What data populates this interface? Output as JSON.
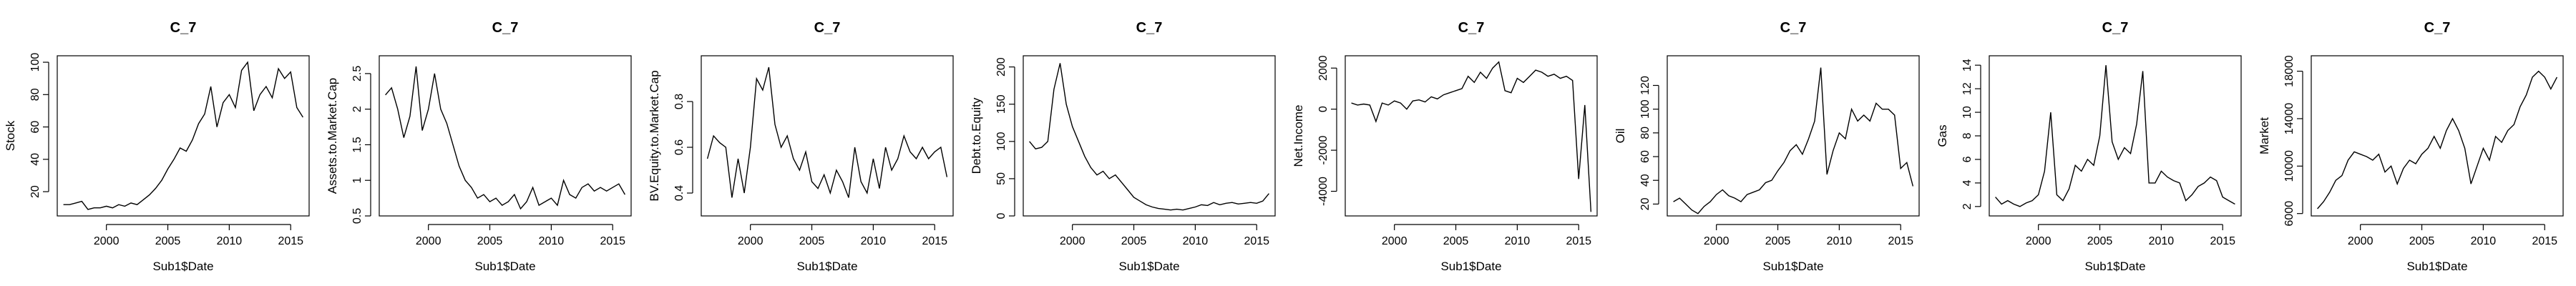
{
  "chart_data": [
    {
      "type": "line",
      "title": "C_7",
      "xlabel": "Sub1$Date",
      "ylabel": "Stock",
      "xlim": [
        1996,
        2016.5
      ],
      "ylim": [
        5,
        104
      ],
      "xticks": [
        2000,
        2005,
        2010,
        2015
      ],
      "yticks": [
        20,
        40,
        60,
        80,
        100
      ],
      "x": [
        1996.5,
        1997.0,
        1997.5,
        1998.0,
        1998.5,
        1999.0,
        1999.5,
        2000.0,
        2000.5,
        2001.0,
        2001.5,
        2002.0,
        2002.5,
        2003.0,
        2003.5,
        2004.0,
        2004.5,
        2005.0,
        2005.5,
        2006.0,
        2006.5,
        2007.0,
        2007.5,
        2008.0,
        2008.5,
        2009.0,
        2009.5,
        2010.0,
        2010.5,
        2011.0,
        2011.5,
        2012.0,
        2012.5,
        2013.0,
        2013.5,
        2014.0,
        2014.5,
        2015.0,
        2015.5,
        2016.0
      ],
      "y": [
        12,
        12,
        13,
        14,
        9,
        10,
        10,
        11,
        10,
        12,
        11,
        13,
        12,
        15,
        18,
        22,
        27,
        34,
        40,
        47,
        45,
        52,
        62,
        68,
        85,
        60,
        75,
        80,
        72,
        95,
        100,
        70,
        80,
        85,
        78,
        96,
        90,
        94,
        72,
        66
      ]
    },
    {
      "type": "line",
      "title": "C_7",
      "xlabel": "Sub1$Date",
      "ylabel": "Assets.to.Market.Cap",
      "xlim": [
        1996,
        2016.5
      ],
      "ylim": [
        0.5,
        2.75
      ],
      "xticks": [
        2000,
        2005,
        2010,
        2015
      ],
      "yticks": [
        0.5,
        1.0,
        1.5,
        2.0,
        2.5
      ],
      "x": [
        1996.5,
        1997.0,
        1997.5,
        1998.0,
        1998.5,
        1999.0,
        1999.5,
        2000.0,
        2000.5,
        2001.0,
        2001.5,
        2002.0,
        2002.5,
        2003.0,
        2003.5,
        2004.0,
        2004.5,
        2005.0,
        2005.5,
        2006.0,
        2006.5,
        2007.0,
        2007.5,
        2008.0,
        2008.5,
        2009.0,
        2009.5,
        2010.0,
        2010.5,
        2011.0,
        2011.5,
        2012.0,
        2012.5,
        2013.0,
        2013.5,
        2014.0,
        2014.5,
        2015.0,
        2015.5,
        2016.0
      ],
      "y": [
        2.2,
        2.3,
        2.0,
        1.6,
        1.9,
        2.6,
        1.7,
        2.0,
        2.5,
        2.0,
        1.8,
        1.5,
        1.2,
        1.0,
        0.9,
        0.75,
        0.8,
        0.7,
        0.75,
        0.65,
        0.7,
        0.8,
        0.6,
        0.7,
        0.9,
        0.65,
        0.7,
        0.75,
        0.65,
        1.0,
        0.8,
        0.75,
        0.9,
        0.95,
        0.85,
        0.9,
        0.85,
        0.9,
        0.95,
        0.8
      ]
    },
    {
      "type": "line",
      "title": "C_7",
      "xlabel": "Sub1$Date",
      "ylabel": "BV.Equity.to.Market.Cap",
      "xlim": [
        1996,
        2016.5
      ],
      "ylim": [
        0.3,
        1.0
      ],
      "xticks": [
        2000,
        2005,
        2010,
        2015
      ],
      "yticks": [
        0.4,
        0.6,
        0.8
      ],
      "x": [
        1996.5,
        1997.0,
        1997.5,
        1998.0,
        1998.5,
        1999.0,
        1999.5,
        2000.0,
        2000.5,
        2001.0,
        2001.5,
        2002.0,
        2002.5,
        2003.0,
        2003.5,
        2004.0,
        2004.5,
        2005.0,
        2005.5,
        2006.0,
        2006.5,
        2007.0,
        2007.5,
        2008.0,
        2008.5,
        2009.0,
        2009.5,
        2010.0,
        2010.5,
        2011.0,
        2011.5,
        2012.0,
        2012.5,
        2013.0,
        2013.5,
        2014.0,
        2014.5,
        2015.0,
        2015.5,
        2016.0
      ],
      "y": [
        0.55,
        0.65,
        0.62,
        0.6,
        0.38,
        0.55,
        0.4,
        0.6,
        0.9,
        0.85,
        0.95,
        0.7,
        0.6,
        0.65,
        0.55,
        0.5,
        0.58,
        0.45,
        0.42,
        0.48,
        0.4,
        0.5,
        0.45,
        0.38,
        0.6,
        0.45,
        0.4,
        0.55,
        0.42,
        0.6,
        0.5,
        0.55,
        0.65,
        0.58,
        0.55,
        0.6,
        0.55,
        0.58,
        0.6,
        0.47
      ]
    },
    {
      "type": "line",
      "title": "C_7",
      "xlabel": "Sub1$Date",
      "ylabel": "Debt.to.Equity",
      "xlim": [
        1996,
        2016.5
      ],
      "ylim": [
        0,
        215
      ],
      "xticks": [
        2000,
        2005,
        2010,
        2015
      ],
      "yticks": [
        0,
        50,
        100,
        150,
        200
      ],
      "x": [
        1996.5,
        1997.0,
        1997.5,
        1998.0,
        1998.5,
        1999.0,
        1999.5,
        2000.0,
        2000.5,
        2001.0,
        2001.5,
        2002.0,
        2002.5,
        2003.0,
        2003.5,
        2004.0,
        2004.5,
        2005.0,
        2005.5,
        2006.0,
        2006.5,
        2007.0,
        2007.5,
        2008.0,
        2008.5,
        2009.0,
        2009.5,
        2010.0,
        2010.5,
        2011.0,
        2011.5,
        2012.0,
        2012.5,
        2013.0,
        2013.5,
        2014.0,
        2014.5,
        2015.0,
        2015.5,
        2016.0
      ],
      "y": [
        100,
        90,
        92,
        100,
        170,
        205,
        150,
        120,
        100,
        80,
        65,
        55,
        60,
        50,
        55,
        45,
        35,
        25,
        20,
        15,
        12,
        10,
        9,
        8,
        9,
        8,
        10,
        12,
        15,
        14,
        18,
        15,
        17,
        18,
        16,
        17,
        18,
        17,
        20,
        30
      ]
    },
    {
      "type": "line",
      "title": "C_7",
      "xlabel": "Sub1$Date",
      "ylabel": "Net.Income",
      "xlim": [
        1996,
        2016.5
      ],
      "ylim": [
        -5200,
        2600
      ],
      "xticks": [
        2000,
        2005,
        2010,
        2015
      ],
      "yticks": [
        -4000,
        -2000,
        0,
        2000
      ],
      "x": [
        1996.5,
        1997.0,
        1997.5,
        1998.0,
        1998.5,
        1999.0,
        1999.5,
        2000.0,
        2000.5,
        2001.0,
        2001.5,
        2002.0,
        2002.5,
        2003.0,
        2003.5,
        2004.0,
        2004.5,
        2005.0,
        2005.5,
        2006.0,
        2006.5,
        2007.0,
        2007.5,
        2008.0,
        2008.5,
        2009.0,
        2009.5,
        2010.0,
        2010.5,
        2011.0,
        2011.5,
        2012.0,
        2012.5,
        2013.0,
        2013.5,
        2014.0,
        2014.5,
        2015.0,
        2015.5,
        2016.0
      ],
      "y": [
        300,
        200,
        250,
        200,
        -600,
        300,
        200,
        400,
        300,
        0,
        400,
        450,
        350,
        600,
        500,
        700,
        800,
        900,
        1000,
        1600,
        1300,
        1800,
        1500,
        2000,
        2300,
        900,
        800,
        1500,
        1300,
        1600,
        1900,
        1800,
        1600,
        1700,
        1500,
        1600,
        1400,
        -3400,
        200,
        -5000
      ]
    },
    {
      "type": "line",
      "title": "C_7",
      "xlabel": "Sub1$Date",
      "ylabel": "Oil",
      "xlim": [
        1996,
        2016.5
      ],
      "ylim": [
        10,
        145
      ],
      "xticks": [
        2000,
        2005,
        2010,
        2015
      ],
      "yticks": [
        20,
        40,
        60,
        80,
        100,
        120
      ],
      "x": [
        1996.5,
        1997.0,
        1997.5,
        1998.0,
        1998.5,
        1999.0,
        1999.5,
        2000.0,
        2000.5,
        2001.0,
        2001.5,
        2002.0,
        2002.5,
        2003.0,
        2003.5,
        2004.0,
        2004.5,
        2005.0,
        2005.5,
        2006.0,
        2006.5,
        2007.0,
        2007.5,
        2008.0,
        2008.5,
        2009.0,
        2009.5,
        2010.0,
        2010.5,
        2011.0,
        2011.5,
        2012.0,
        2012.5,
        2013.0,
        2013.5,
        2014.0,
        2014.5,
        2015.0,
        2015.5,
        2016.0
      ],
      "y": [
        22,
        25,
        20,
        15,
        12,
        18,
        22,
        28,
        32,
        27,
        25,
        22,
        28,
        30,
        32,
        38,
        40,
        48,
        55,
        65,
        70,
        62,
        75,
        90,
        135,
        45,
        65,
        80,
        75,
        100,
        90,
        95,
        90,
        105,
        100,
        100,
        95,
        50,
        55,
        35
      ]
    },
    {
      "type": "line",
      "title": "C_7",
      "xlabel": "Sub1$Date",
      "ylabel": "Gas",
      "xlim": [
        1996,
        2016.5
      ],
      "ylim": [
        1.2,
        14.8
      ],
      "xticks": [
        2000,
        2005,
        2010,
        2015
      ],
      "yticks": [
        2,
        4,
        6,
        8,
        10,
        12,
        14
      ],
      "x": [
        1996.5,
        1997.0,
        1997.5,
        1998.0,
        1998.5,
        1999.0,
        1999.5,
        2000.0,
        2000.5,
        2001.0,
        2001.5,
        2002.0,
        2002.5,
        2003.0,
        2003.5,
        2004.0,
        2004.5,
        2005.0,
        2005.5,
        2006.0,
        2006.5,
        2007.0,
        2007.5,
        2008.0,
        2008.5,
        2009.0,
        2009.5,
        2010.0,
        2010.5,
        2011.0,
        2011.5,
        2012.0,
        2012.5,
        2013.0,
        2013.5,
        2014.0,
        2014.5,
        2015.0,
        2015.5,
        2016.0
      ],
      "y": [
        2.8,
        2.2,
        2.5,
        2.2,
        2.0,
        2.3,
        2.5,
        3.0,
        5.0,
        10.0,
        3.0,
        2.5,
        3.5,
        5.5,
        5.0,
        6.0,
        5.5,
        8.0,
        14.0,
        7.5,
        6.0,
        7.0,
        6.5,
        9.0,
        13.5,
        4.0,
        4.0,
        5.0,
        4.5,
        4.2,
        4.0,
        2.5,
        3.0,
        3.7,
        4.0,
        4.5,
        4.2,
        2.8,
        2.5,
        2.2
      ]
    },
    {
      "type": "line",
      "title": "C_7",
      "xlabel": "Sub1$Date",
      "ylabel": "Market",
      "xlim": [
        1996,
        2016.5
      ],
      "ylim": [
        5800,
        19300
      ],
      "xticks": [
        2000,
        2005,
        2010,
        2015
      ],
      "yticks": [
        6000,
        10000,
        14000,
        18000
      ],
      "x": [
        1996.5,
        1997.0,
        1997.5,
        1998.0,
        1998.5,
        1999.0,
        1999.5,
        2000.0,
        2000.5,
        2001.0,
        2001.5,
        2002.0,
        2002.5,
        2003.0,
        2003.5,
        2004.0,
        2004.5,
        2005.0,
        2005.5,
        2006.0,
        2006.5,
        2007.0,
        2007.5,
        2008.0,
        2008.5,
        2009.0,
        2009.5,
        2010.0,
        2010.5,
        2011.0,
        2011.5,
        2012.0,
        2012.5,
        2013.0,
        2013.5,
        2014.0,
        2014.5,
        2015.0,
        2015.5,
        2016.0
      ],
      "y": [
        6400,
        7000,
        7800,
        8800,
        9200,
        10500,
        11200,
        11000,
        10800,
        10500,
        11000,
        9500,
        10000,
        8500,
        9800,
        10500,
        10200,
        11000,
        11500,
        12500,
        11500,
        13000,
        14000,
        13000,
        11500,
        8500,
        10000,
        11500,
        10500,
        12500,
        12000,
        13000,
        13500,
        15000,
        16000,
        17500,
        18000,
        17500,
        16500,
        17500
      ]
    }
  ]
}
